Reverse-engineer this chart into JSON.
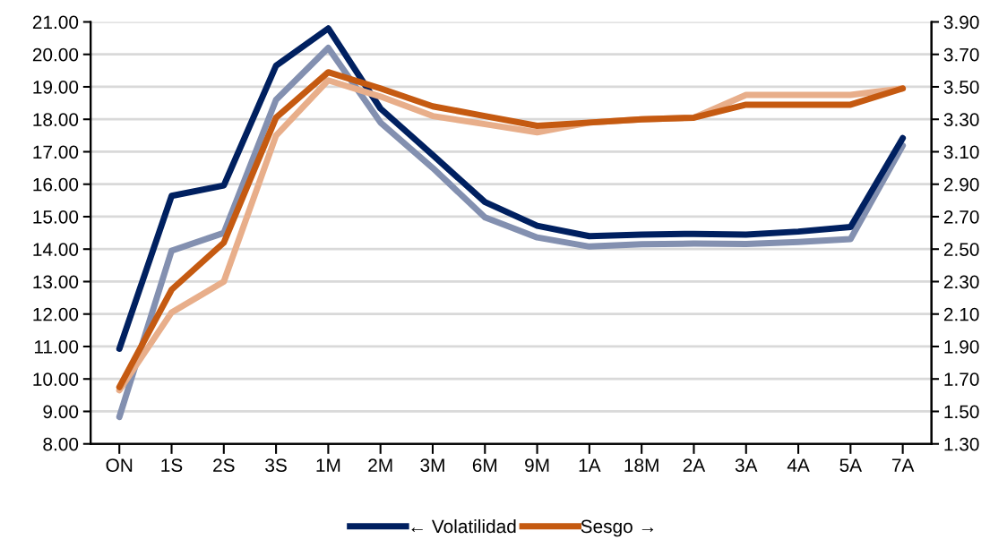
{
  "chart_data": {
    "type": "line",
    "categories": [
      "ON",
      "1S",
      "2S",
      "3S",
      "1M",
      "2M",
      "3M",
      "6M",
      "9M",
      "1A",
      "18M",
      "2A",
      "3A",
      "4A",
      "5A",
      "7A"
    ],
    "series": [
      {
        "color": "#8390b0",
        "values": [
          8.83,
          13.95,
          14.5,
          18.6,
          20.2,
          17.9,
          16.5,
          14.98,
          14.36,
          14.08,
          14.15,
          14.17,
          14.16,
          14.22,
          14.31,
          17.19
        ]
      },
      {
        "color": "#e8ae8a",
        "axis": "y2",
        "values": [
          1.63,
          2.11,
          2.3,
          3.2,
          3.54,
          3.44,
          3.32,
          3.27,
          3.22,
          3.28,
          3.3,
          3.31,
          3.45,
          3.45,
          3.45,
          3.49
        ]
      },
      {
        "name": "← Volatilidad",
        "color": "#002060",
        "values": [
          10.93,
          15.64,
          15.96,
          19.65,
          20.8,
          18.33,
          16.9,
          15.45,
          14.72,
          14.4,
          14.45,
          14.47,
          14.45,
          14.54,
          14.68,
          17.42
        ]
      },
      {
        "name": "Sesgo →",
        "color": "#c55a11",
        "axis": "y2",
        "values": [
          1.65,
          2.25,
          2.54,
          3.31,
          3.59,
          3.49,
          3.38,
          3.32,
          3.26,
          3.28,
          3.3,
          3.31,
          3.39,
          3.39,
          3.39,
          3.49
        ]
      }
    ],
    "ylim": [
      8,
      21
    ],
    "yticks": [
      {
        "value": 8,
        "label": "8.00"
      },
      {
        "value": 9,
        "label": "9.00"
      },
      {
        "value": 10,
        "label": "10.00"
      },
      {
        "value": 11,
        "label": "11.00"
      },
      {
        "value": 12,
        "label": "12.00"
      },
      {
        "value": 13,
        "label": "13.00"
      },
      {
        "value": 14,
        "label": "14.00"
      },
      {
        "value": 15,
        "label": "15.00"
      },
      {
        "value": 16,
        "label": "16.00"
      },
      {
        "value": 17,
        "label": "17.00"
      },
      {
        "value": 18,
        "label": "18.00"
      },
      {
        "value": 19,
        "label": "19.00"
      },
      {
        "value": 20,
        "label": "20.00"
      },
      {
        "value": 21,
        "label": "21.00"
      }
    ],
    "y2lim": [
      1.3,
      3.9
    ],
    "y2ticks": [
      {
        "value": 1.3,
        "label": "1.30"
      },
      {
        "value": 1.5,
        "label": "1.50"
      },
      {
        "value": 1.7,
        "label": "1.70"
      },
      {
        "value": 1.9,
        "label": "1.90"
      },
      {
        "value": 2.1,
        "label": "2.10"
      },
      {
        "value": 2.3,
        "label": "2.30"
      },
      {
        "value": 2.5,
        "label": "2.50"
      },
      {
        "value": 2.7,
        "label": "2.70"
      },
      {
        "value": 2.9,
        "label": "2.90"
      },
      {
        "value": 3.1,
        "label": "3.10"
      },
      {
        "value": 3.3,
        "label": "3.30"
      },
      {
        "value": 3.5,
        "label": "3.50"
      },
      {
        "value": 3.7,
        "label": "3.70"
      },
      {
        "value": 3.9,
        "label": "3.90"
      }
    ],
    "grid": "y",
    "legend": "bottom",
    "marker": "none",
    "line_style": "solid"
  }
}
